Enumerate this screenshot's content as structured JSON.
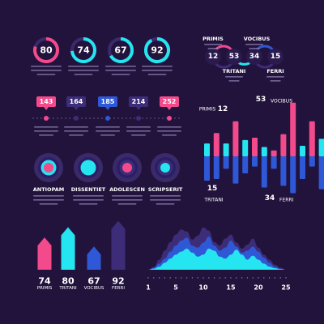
{
  "colors": {
    "background": "#22133d",
    "pink": "#f24a8a",
    "cyan": "#25e5f0",
    "blue": "#2e58d6",
    "purple": "#3d2c78",
    "ring_track": "#3a2a6a",
    "text": "#ffffff",
    "muted": "#8e83b3"
  },
  "chart_data": [
    {
      "type": "donut",
      "id": "top-donuts",
      "values": [
        80,
        74,
        67,
        92
      ],
      "ring_colors": [
        "pink",
        "cyan",
        "cyan",
        "cyan"
      ]
    },
    {
      "type": "linked-circles",
      "id": "top-right-links",
      "nodes": [
        {
          "value": 12,
          "label": "PRIMIS",
          "label_position": "top"
        },
        {
          "value": 53,
          "label": "TRITANI",
          "label_position": "bottom"
        },
        {
          "value": 34,
          "label": "VOCIBUS",
          "label_position": "top"
        },
        {
          "value": 15,
          "label": "FERRI",
          "label_position": "bottom"
        }
      ]
    },
    {
      "type": "timeline",
      "id": "middle-timeline",
      "points": [
        {
          "value": 143,
          "color": "pink"
        },
        {
          "value": 164,
          "color": "purple"
        },
        {
          "value": 185,
          "color": "blue"
        },
        {
          "value": 214,
          "color": "purple"
        },
        {
          "value": 252,
          "color": "pink"
        }
      ]
    },
    {
      "type": "bar",
      "id": "right-bar-chart",
      "annotations": [
        {
          "value": 12,
          "label": "PRIMIS"
        },
        {
          "value": 53,
          "label": "VOCIBUS"
        },
        {
          "value": 15,
          "label": "TRITANI"
        },
        {
          "value": 34,
          "label": "FERRI"
        }
      ],
      "bars": [
        {
          "up": 0.22,
          "up_color": "cyan",
          "down": 0.43
        },
        {
          "up": 0.4,
          "up_color": "pink",
          "down": 0.4
        },
        {
          "up": 0.22,
          "up_color": "cyan",
          "down": 0.22
        },
        {
          "up": 0.6,
          "up_color": "pink",
          "down": 0.48
        },
        {
          "up": 0.28,
          "up_color": "cyan",
          "down": 0.3
        },
        {
          "up": 0.32,
          "up_color": "pink",
          "down": 0.18
        },
        {
          "up": 0.16,
          "up_color": "cyan",
          "down": 0.55
        },
        {
          "up": 0.1,
          "up_color": "pink",
          "down": 0.22
        },
        {
          "up": 0.38,
          "up_color": "pink",
          "down": 0.52
        },
        {
          "up": 0.92,
          "up_color": "pink",
          "down": 0.65
        },
        {
          "up": 0.18,
          "up_color": "cyan",
          "down": 0.4
        },
        {
          "up": 0.6,
          "up_color": "pink",
          "down": 0.18
        },
        {
          "up": 0.3,
          "up_color": "cyan",
          "down": 0.58
        }
      ]
    },
    {
      "type": "target-circles",
      "id": "middle-targets",
      "items": [
        {
          "label": "ANTIOPAM",
          "core": "pink",
          "ring": "cyan"
        },
        {
          "label": "DISSENTIET",
          "core": "cyan",
          "ring": "cyan"
        },
        {
          "label": "ADOLESCEN",
          "core": "pink",
          "ring": "purple"
        },
        {
          "label": "SCRIPSERIT",
          "core": "cyan",
          "ring": "purple"
        }
      ]
    },
    {
      "type": "bar",
      "id": "bottom-arrow-bars",
      "values": [
        74,
        80,
        67,
        92
      ],
      "categories": [
        "PRIMIS",
        "TRITANI",
        "VOCIBUS",
        "FERRI"
      ],
      "bar_colors": [
        "pink",
        "cyan",
        "blue",
        "purple"
      ],
      "heights": [
        0.57,
        0.75,
        0.41,
        0.86
      ]
    },
    {
      "type": "area",
      "id": "bottom-area-chart",
      "x_ticks": [
        "1",
        "5",
        "10",
        "15",
        "20",
        "25"
      ],
      "series": [
        {
          "color": "purple",
          "values": [
            0,
            5,
            20,
            38,
            55,
            70,
            80,
            76,
            60,
            68,
            84,
            78,
            55,
            48,
            62,
            70,
            54,
            42,
            50,
            62,
            44,
            30,
            20,
            10,
            4,
            0
          ]
        },
        {
          "color": "blue",
          "values": [
            0,
            4,
            12,
            22,
            36,
            48,
            58,
            64,
            48,
            44,
            54,
            66,
            48,
            38,
            44,
            58,
            46,
            34,
            38,
            46,
            36,
            24,
            14,
            6,
            2,
            0
          ]
        },
        {
          "color": "cyan",
          "values": [
            0,
            2,
            6,
            14,
            22,
            30,
            36,
            42,
            34,
            26,
            30,
            42,
            38,
            26,
            22,
            30,
            40,
            30,
            20,
            28,
            20,
            12,
            6,
            3,
            1,
            0
          ]
        }
      ],
      "ylim": [
        0,
        100
      ]
    }
  ]
}
